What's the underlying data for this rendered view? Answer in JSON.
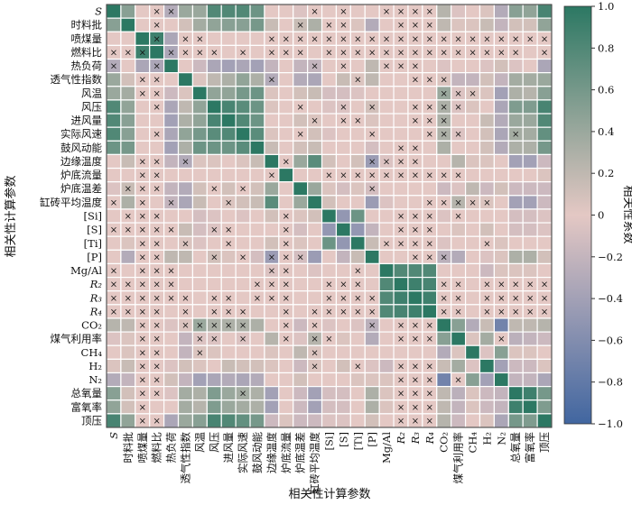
{
  "chart_data": {
    "type": "heatmap",
    "title": "",
    "xlabel": "相关性计算参数",
    "ylabel": "相关性计算参数",
    "colorbar_label": "相关性系数",
    "colorbar_ticks": [
      "1.0",
      "0.8",
      "0.6",
      "0.4",
      "0.2",
      "0",
      "−0.2",
      "−0.4",
      "−0.6",
      "−0.8",
      "−1.0"
    ],
    "colorbar_tick_values": [
      1.0,
      0.8,
      0.6,
      0.4,
      0.2,
      0,
      -0.2,
      -0.4,
      -0.6,
      -0.8,
      -1.0
    ],
    "value_range": [
      -1,
      1
    ],
    "colors": {
      "negative": "#4166a0",
      "zero": "#e4c8c4",
      "positive": "#2c7863"
    },
    "insignificant_marker": "×",
    "labels": [
      "S",
      "时料批",
      "喷煤量",
      "燃料比",
      "热负荷",
      "透气性指数",
      "风温",
      "风压",
      "进风量",
      "实际风速",
      "鼓风动能",
      "边缘温度",
      "炉底流量",
      "炉底温差",
      "缸砖平均温度",
      "[Si]",
      "[S]",
      "[Ti]",
      "[P]",
      "Mg/Al",
      "R₂",
      "R₃",
      "R₄",
      "CO₂",
      "煤气利用率",
      "CH₄",
      "H₂",
      "N₂",
      "总氧量",
      "富氧率",
      "顶压"
    ],
    "symmetric": true,
    "values_upper": [
      [
        1.0,
        0.5,
        0,
        0,
        -0.3,
        0.4,
        0.4,
        0.8,
        0.8,
        0.8,
        0.65,
        0,
        0,
        -0.05,
        0,
        0,
        0,
        0,
        0,
        0,
        0,
        0,
        0,
        0.25,
        -0.05,
        0,
        0.05,
        -0.3,
        0.5,
        0.45,
        0.85
      ],
      [
        1.0,
        0,
        0,
        0,
        0.1,
        0.35,
        0.45,
        0.5,
        0.5,
        0.6,
        0.15,
        0,
        0.15,
        0.3,
        0,
        0,
        0.05,
        -0.3,
        0,
        0,
        0,
        0,
        0.2,
        0.05,
        0.05,
        0.15,
        -0.2,
        0.1,
        0.1,
        0.45
      ],
      [
        1.0,
        0.9,
        -0.35,
        0,
        0,
        0,
        0,
        0,
        0,
        0,
        0,
        0,
        0,
        0,
        0,
        0,
        0,
        0,
        0,
        0,
        0,
        0,
        0,
        0,
        0,
        0,
        0,
        0,
        0
      ],
      [
        1.0,
        -0.35,
        0,
        0,
        0,
        0,
        0,
        0,
        0,
        0,
        0,
        0,
        0,
        0,
        0,
        0,
        0,
        0,
        0,
        0,
        0,
        0,
        0,
        0,
        0,
        0,
        0,
        0
      ],
      [
        1.0,
        0,
        -0.15,
        -0.35,
        -0.4,
        -0.35,
        -0.4,
        -0.2,
        0,
        -0.2,
        -0.2,
        0,
        0,
        0,
        0.2,
        0,
        0,
        0,
        0,
        -0.05,
        0,
        0,
        -0.05,
        0.1,
        -0.05,
        0,
        -0.35
      ],
      [
        1.0,
        0.05,
        0.2,
        0.3,
        0.45,
        0.3,
        -0.3,
        0,
        -0.3,
        -0.35,
        0,
        0.15,
        0.05,
        0.2,
        0,
        0,
        0,
        0,
        0.05,
        -0.2,
        -0.2,
        0.1,
        -0.2,
        0.35,
        0.35,
        0.4
      ],
      [
        1.0,
        0.45,
        0.45,
        0.6,
        0.65,
        0.05,
        0,
        0.1,
        0.15,
        -0.1,
        -0.1,
        -0.05,
        0,
        0,
        0,
        0,
        0,
        0.4,
        -0.05,
        0.05,
        0.05,
        -0.4,
        0.3,
        0.25,
        0.5
      ],
      [
        1.0,
        0.85,
        0.75,
        0.65,
        0.05,
        0,
        0,
        0,
        -0.05,
        -0.05,
        0,
        0.1,
        0,
        0,
        0,
        0,
        0.3,
        -0.05,
        0.05,
        0,
        -0.35,
        0.55,
        0.55,
        0.85
      ],
      [
        1.0,
        0.8,
        0.65,
        0,
        0,
        0.1,
        0.05,
        0,
        0,
        0,
        0.05,
        0,
        0,
        0,
        0,
        0.3,
        0,
        0,
        0.15,
        -0.3,
        0.4,
        0.4,
        0.8
      ],
      [
        1.0,
        0.75,
        0.05,
        0,
        0,
        0.1,
        -0.05,
        0,
        0,
        0,
        0,
        0,
        0,
        0,
        0.3,
        -0.05,
        0,
        0.1,
        -0.35,
        0.35,
        0.35,
        0.7
      ],
      [
        1.0,
        0.15,
        0,
        0.1,
        0.15,
        0,
        0,
        0,
        -0.1,
        0,
        0,
        0,
        0,
        0.3,
        0,
        0,
        0.1,
        -0.3,
        0.3,
        0.3,
        0.6
      ],
      [
        1.0,
        0,
        0.4,
        0.75,
        0.1,
        0,
        0.1,
        -0.45,
        -0.05,
        0,
        0,
        0,
        0,
        0.25,
        0.05,
        0.05,
        0,
        -0.4,
        -0.4,
        -0.15
      ],
      [
        1.0,
        0,
        0,
        0,
        0,
        0,
        0,
        0,
        0,
        0,
        0,
        0,
        0,
        0,
        0,
        0,
        0,
        0,
        0.05
      ],
      [
        1.0,
        0.4,
        0.05,
        -0.1,
        0.05,
        -0.1,
        0,
        0,
        0,
        0,
        -0.15,
        -0.05,
        0.2,
        -0.15,
        0.1,
        -0.15,
        -0.15,
        -0.15
      ],
      [
        1.0,
        0.1,
        0,
        0,
        -0.45,
        -0.05,
        0,
        0,
        0,
        0,
        0.25,
        0.05,
        0.05,
        0,
        -0.4,
        -0.4,
        -0.15
      ],
      [
        1.0,
        -0.5,
        0.65,
        0,
        0,
        0,
        0,
        0,
        -0.05,
        0,
        0,
        0,
        0,
        -0.1,
        -0.1,
        -0.05
      ],
      [
        1.0,
        -0.5,
        -0.2,
        0,
        0,
        0,
        0,
        0,
        0.05,
        0,
        0.1,
        0,
        -0.1,
        -0.1,
        -0.05
      ],
      [
        1.0,
        0.15,
        0,
        0,
        0,
        0,
        -0.05,
        0,
        0,
        0,
        0.05,
        0,
        0,
        0
      ],
      [
        1.0,
        0,
        0,
        0,
        0,
        -0.25,
        -0.3,
        0,
        -0.05,
        0.05,
        0.3,
        0.3,
        0.1
      ],
      [
        1.0,
        0.8,
        0.8,
        0.8,
        0,
        0,
        0,
        -0.15,
        0.05,
        0.05,
        0.05,
        0
      ],
      [
        1.0,
        0.9,
        0.85,
        0,
        0,
        0,
        0,
        0,
        0,
        0,
        0
      ],
      [
        1.0,
        0.9,
        0,
        0,
        0,
        0,
        0,
        0,
        0,
        0
      ],
      [
        1.0,
        0,
        0,
        0,
        0,
        0,
        0,
        0,
        0
      ],
      [
        1.0,
        0.5,
        -0.3,
        0.15,
        -0.7,
        0.2,
        0.2,
        0.25
      ],
      [
        1.0,
        0.05,
        0.35,
        0,
        -0.25,
        -0.2,
        -0.15
      ],
      [
        1.0,
        -0.05,
        0.5,
        0.05,
        0.05,
        0
      ],
      [
        1.0,
        -0.4,
        -0.15,
        -0.15,
        0.05
      ],
      [
        1.0,
        -0.2,
        -0.2,
        -0.35
      ],
      [
        1.0,
        0.9,
        0.6
      ],
      [
        1.0,
        0.55
      ],
      [
        1.0
      ]
    ],
    "insignificant_upper": [
      "...xx.........x.x..xxxx........",
      "..x.........x.xx...xxx.........",
      ".x.xx....xxxxxxxxxxxxxxxxxxxx",
      ".xxxx.x.xxx.xxxxxxxxxxxxxx.x",
      "..........x.x..xxx........",
      "......x.....x...xxx.......",
      ".................xxx.........",
      "......x..x.x..xxxx.........",
      "......x.xx...xxx.........",
      "....x....x...xxx...x.....",
      "..........xx...........",
      ".x.....xxxx...........",
      "...xxxxxxxxxx..........",
      ".....x.................",
      "........xxxxx.......",
      ".....xxx.x..........",
      "....xxx............",
      "..xxxx...x.........",
      "...xxx.........",
      "..............",
      "...xx.xxxxx",
      "..xx.xxxxx",
      ".xx.xxxxx",
      "........",
      "...x...",
      "......",
      ".....",
      "....",
      "...",
      "..",
      "."
    ]
  }
}
